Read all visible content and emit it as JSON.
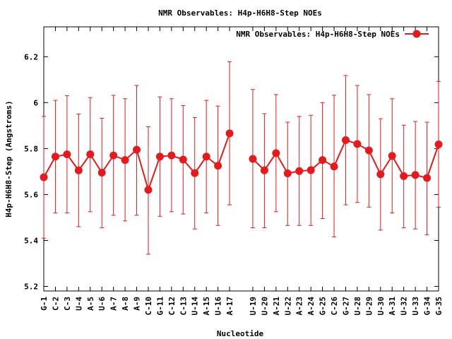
{
  "chart_data": {
    "type": "line",
    "title": "NMR Observables: H4p-H6H8-Step NOEs",
    "xlabel": "Nucleotide",
    "ylabel": "H4p-H6H8-Step (Angstroms)",
    "ylim": [
      5.18,
      6.33
    ],
    "yticks": [
      5.2,
      5.4,
      5.6,
      5.8,
      6,
      6.2
    ],
    "ytick_labels": [
      "5.2",
      "5.4",
      "5.6",
      "5.8",
      "6",
      "6.2"
    ],
    "grid": false,
    "legend_position": "top-right",
    "color": "#e41a1c",
    "categories": [
      "G-1",
      "C-2",
      "C-3",
      "U-4",
      "A-5",
      "U-6",
      "A-7",
      "A-8",
      "A-9",
      "C-10",
      "G-11",
      "C-12",
      "C-13",
      "U-14",
      "A-15",
      "U-16",
      "A-17",
      "U-19",
      "U-20",
      "A-21",
      "U-22",
      "A-23",
      "A-24",
      "G-25",
      "C-26",
      "G-27",
      "U-28",
      "U-29",
      "U-30",
      "A-31",
      "U-32",
      "U-33",
      "G-34",
      "G-35"
    ],
    "positions": [
      1,
      2,
      3,
      4,
      5,
      6,
      7,
      8,
      9,
      10,
      11,
      12,
      13,
      14,
      15,
      16,
      17,
      19,
      20,
      21,
      22,
      23,
      24,
      25,
      26,
      27,
      28,
      29,
      30,
      31,
      32,
      33,
      34,
      35
    ],
    "xlim": [
      1,
      35
    ],
    "series": [
      {
        "name": "NMR Observables: H4p-H6H8-Step NOEs",
        "values": [
          5.675,
          5.765,
          5.775,
          5.705,
          5.775,
          5.695,
          5.77,
          5.75,
          5.795,
          5.62,
          5.765,
          5.77,
          5.752,
          5.693,
          5.765,
          5.725,
          5.866,
          5.755,
          5.705,
          5.78,
          5.692,
          5.702,
          5.706,
          5.75,
          5.722,
          5.837,
          5.82,
          5.792,
          5.688,
          5.768,
          5.68,
          5.685,
          5.672,
          5.818
        ],
        "err_low": [
          5.41,
          5.52,
          5.52,
          5.46,
          5.525,
          5.455,
          5.51,
          5.485,
          5.51,
          5.34,
          5.505,
          5.525,
          5.515,
          5.45,
          5.52,
          5.465,
          5.555,
          5.455,
          5.455,
          5.525,
          5.465,
          5.465,
          5.465,
          5.495,
          5.415,
          5.555,
          5.565,
          5.545,
          5.445,
          5.52,
          5.455,
          5.45,
          5.425,
          5.545
        ],
        "err_high": [
          5.94,
          6.01,
          6.03,
          5.95,
          6.022,
          5.932,
          6.032,
          6.017,
          6.075,
          5.895,
          6.025,
          6.017,
          5.987,
          5.935,
          6.01,
          5.985,
          6.178,
          6.057,
          5.952,
          6.035,
          5.915,
          5.94,
          5.945,
          6.0,
          6.032,
          6.118,
          6.075,
          6.035,
          5.93,
          6.017,
          5.902,
          5.918,
          5.915,
          6.092
        ]
      }
    ]
  }
}
